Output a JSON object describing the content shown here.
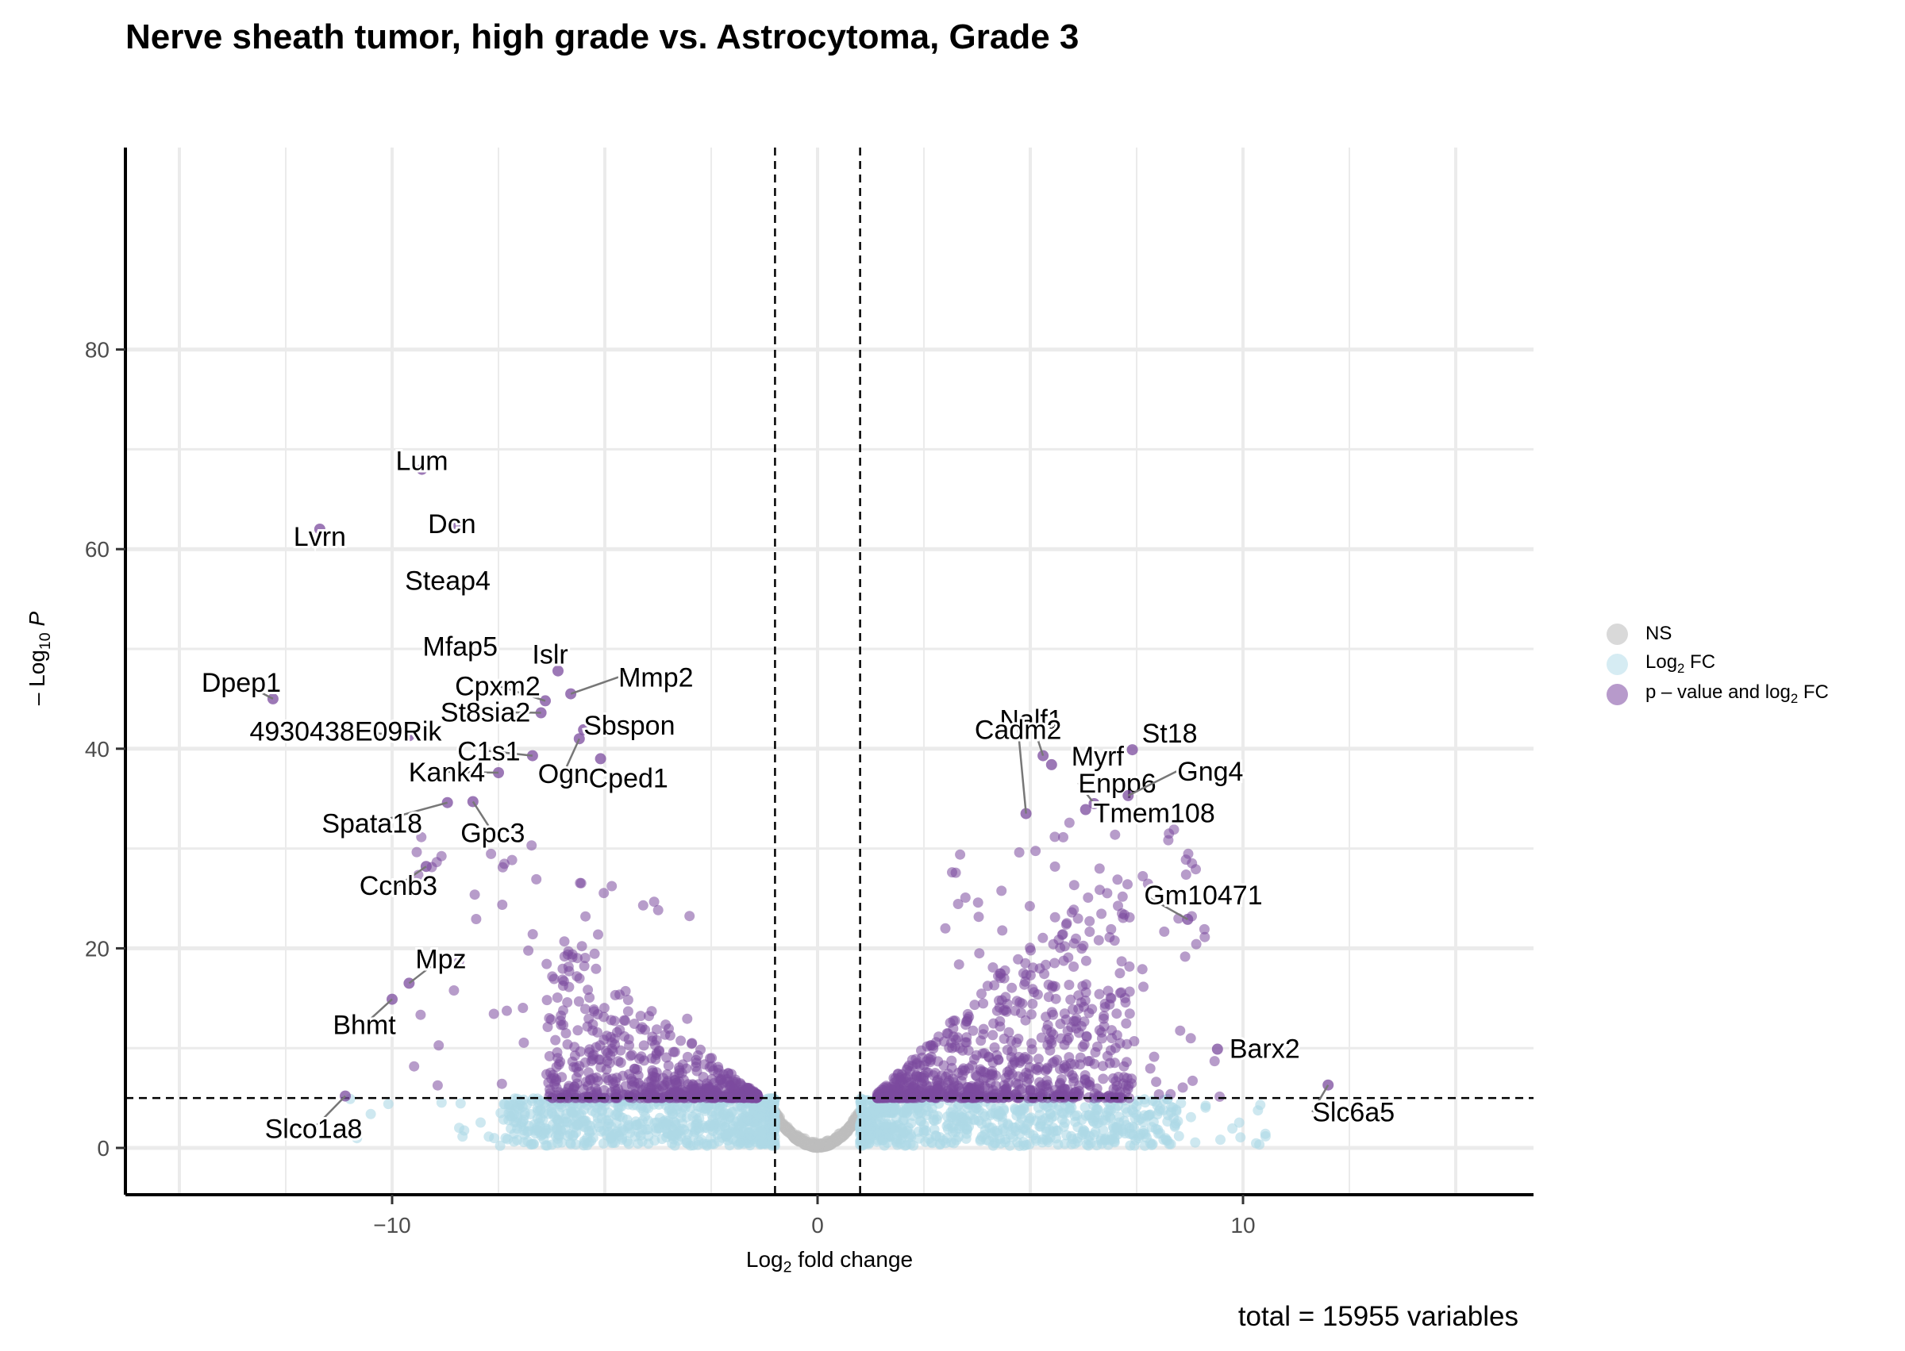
{
  "title": "Nerve sheath tumor, high grade vs. Astrocytoma, Grade 3",
  "caption": "total = 15955 variables",
  "colors": {
    "ns": "#bebebe",
    "fc": "#add8e6",
    "both": "#7b4b9e",
    "grid": "#ebebeb"
  },
  "legend": {
    "items": [
      {
        "key": "ns",
        "pre": "NS",
        "sub": "",
        "post": ""
      },
      {
        "key": "fc",
        "pre": "Log",
        "sub": "2",
        "post": " FC"
      },
      {
        "key": "both",
        "pre": "p – value and log",
        "sub": "2",
        "post": " FC"
      }
    ]
  },
  "chart_data": {
    "type": "scatter",
    "title": "Nerve sheath tumor, high grade vs. Astrocytoma, Grade 3",
    "xlabel": {
      "pre": "Log",
      "sub": "2",
      "post": " fold change"
    },
    "ylabel": {
      "pre": "– Log",
      "sub": "10",
      "post": " P"
    },
    "xlim": [
      -15,
      15
    ],
    "ylim": [
      0,
      80
    ],
    "x_ticks": [
      -10,
      0,
      10
    ],
    "y_ticks": [
      0,
      20,
      40,
      60,
      80
    ],
    "grid": true,
    "cutoffs": {
      "log2fc": [
        -1,
        1
      ],
      "neg_log10_p": 5
    },
    "total_variables": 15955,
    "legend_position": "right",
    "labeled_points": [
      {
        "gene": "Lum",
        "x": -9.3,
        "y": 68.0
      },
      {
        "gene": "Lvrn",
        "x": -11.7,
        "y": 62.0
      },
      {
        "gene": "Dcn",
        "x": -8.5,
        "y": 62.5
      },
      {
        "gene": "Steap4",
        "x": -8.6,
        "y": 56.8
      },
      {
        "gene": "Mfap5",
        "x": -8.4,
        "y": 50.2
      },
      {
        "gene": "Islr",
        "x": -6.1,
        "y": 47.8
      },
      {
        "gene": "Dpep1",
        "x": -12.8,
        "y": 45.0
      },
      {
        "gene": "Cpxm2",
        "x": -6.4,
        "y": 44.8
      },
      {
        "gene": "Mmp2",
        "x": -5.8,
        "y": 45.5
      },
      {
        "gene": "St8sia2",
        "x": -6.5,
        "y": 43.6
      },
      {
        "gene": "Sbspon",
        "x": -5.5,
        "y": 41.9
      },
      {
        "gene": "4930438E09Rik",
        "x": -9.6,
        "y": 41.3
      },
      {
        "gene": "C1s1",
        "x": -6.7,
        "y": 39.3
      },
      {
        "gene": "Cped1",
        "x": -5.1,
        "y": 39.0
      },
      {
        "gene": "Ogn",
        "x": -5.6,
        "y": 41.0
      },
      {
        "gene": "Kank4",
        "x": -7.5,
        "y": 37.6
      },
      {
        "gene": "Spata18",
        "x": -8.7,
        "y": 34.6
      },
      {
        "gene": "Gpc3",
        "x": -8.1,
        "y": 34.7
      },
      {
        "gene": "Ccnb3",
        "x": -9.2,
        "y": 28.2
      },
      {
        "gene": "Mpz",
        "x": -9.6,
        "y": 16.5
      },
      {
        "gene": "Bhmt",
        "x": -10.0,
        "y": 14.9
      },
      {
        "gene": "Slco1a8",
        "x": -11.1,
        "y": 5.2
      },
      {
        "gene": "Nalf1",
        "x": 5.3,
        "y": 39.3
      },
      {
        "gene": "Cadm2",
        "x": 4.9,
        "y": 33.5
      },
      {
        "gene": "Myrf",
        "x": 5.5,
        "y": 38.4
      },
      {
        "gene": "St18",
        "x": 7.4,
        "y": 39.9
      },
      {
        "gene": "Enpp6",
        "x": 6.5,
        "y": 34.5
      },
      {
        "gene": "Gng4",
        "x": 7.3,
        "y": 35.3
      },
      {
        "gene": "Tmem108",
        "x": 6.3,
        "y": 33.9
      },
      {
        "gene": "Gm10471",
        "x": 8.7,
        "y": 22.9
      },
      {
        "gene": "Barx2",
        "x": 9.4,
        "y": 9.9
      },
      {
        "gene": "Slc6a5",
        "x": 12.0,
        "y": 6.3
      }
    ]
  }
}
